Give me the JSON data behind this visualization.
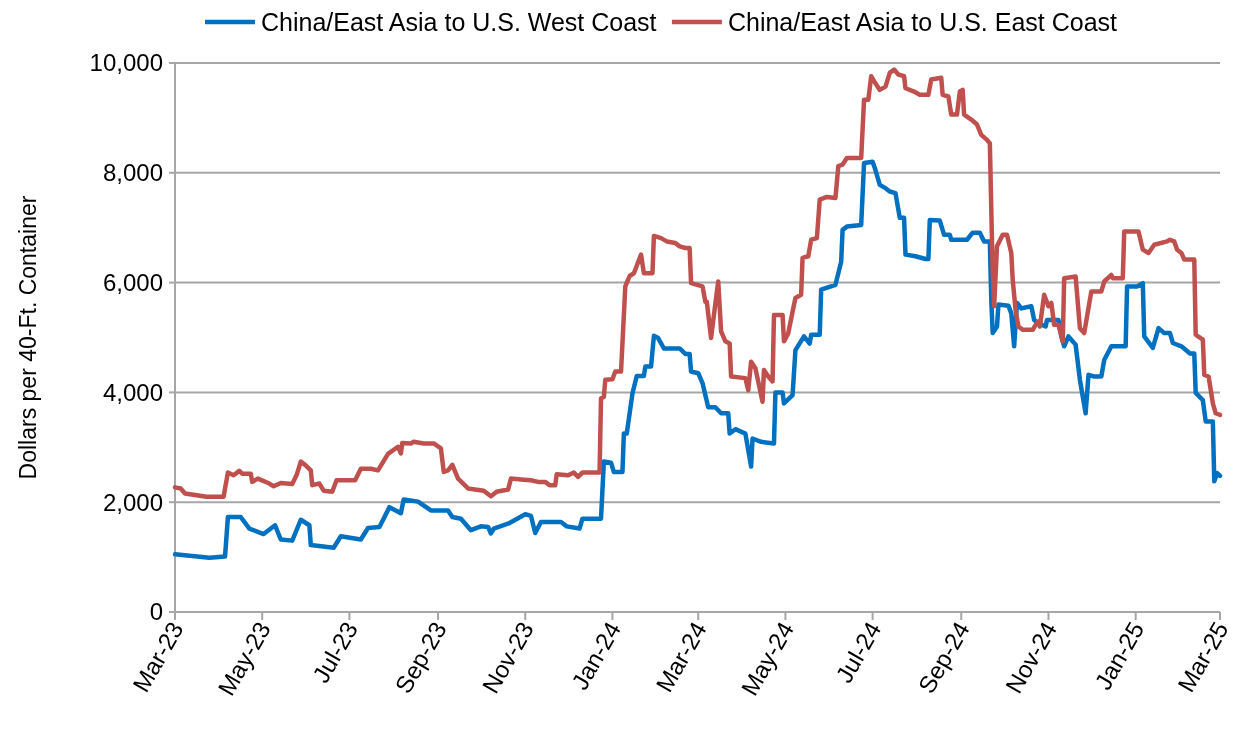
{
  "chart_data": {
    "type": "line",
    "ylabel": "Dollars per 40-Ft. Container",
    "xlim": [
      "2023-03-01",
      "2025-03-01"
    ],
    "xticks": [
      {
        "value": "2023-03-01",
        "label": "Mar-23"
      },
      {
        "value": "2023-05-01",
        "label": "May-23"
      },
      {
        "value": "2023-07-01",
        "label": "Jul-23"
      },
      {
        "value": "2023-09-01",
        "label": "Sep-23"
      },
      {
        "value": "2023-11-01",
        "label": "Nov-23"
      },
      {
        "value": "2024-01-01",
        "label": "Jan-24"
      },
      {
        "value": "2024-03-01",
        "label": "Mar-24"
      },
      {
        "value": "2024-05-01",
        "label": "May-24"
      },
      {
        "value": "2024-07-01",
        "label": "Jul-24"
      },
      {
        "value": "2024-09-01",
        "label": "Sep-24"
      },
      {
        "value": "2024-11-01",
        "label": "Nov-24"
      },
      {
        "value": "2025-01-01",
        "label": "Jan-25"
      },
      {
        "value": "2025-03-01",
        "label": "Mar-25"
      }
    ],
    "ylim": [
      0,
      10000
    ],
    "yticks": [
      {
        "value": 0,
        "label": "0"
      },
      {
        "value": 2000,
        "label": "2,000"
      },
      {
        "value": 4000,
        "label": "4,000"
      },
      {
        "value": 6000,
        "label": "6,000"
      },
      {
        "value": 8000,
        "label": "8,000"
      },
      {
        "value": 10000,
        "label": "10,000"
      }
    ],
    "grid": "y",
    "legend": "top",
    "marker": "none",
    "line_style": "solid",
    "series": [
      {
        "name": "China/East Asia to U.S. West Coast",
        "color": "#0070c0",
        "x": [
          "2023-03-01",
          "2023-03-25",
          "2023-04-05",
          "2023-04-07",
          "2023-04-16",
          "2023-04-22",
          "2023-05-02",
          "2023-05-10",
          "2023-05-14",
          "2023-05-22",
          "2023-05-28",
          "2023-06-03",
          "2023-06-04",
          "2023-06-20",
          "2023-06-25",
          "2023-07-09",
          "2023-07-14",
          "2023-07-22",
          "2023-07-29",
          "2023-08-06",
          "2023-08-08",
          "2023-08-18",
          "2023-08-27",
          "2023-09-08",
          "2023-09-11",
          "2023-09-17",
          "2023-09-24",
          "2023-10-01",
          "2023-10-06",
          "2023-10-08",
          "2023-10-10",
          "2023-10-21",
          "2023-11-01",
          "2023-11-05",
          "2023-11-08",
          "2023-11-12",
          "2023-11-26",
          "2023-11-30",
          "2023-12-09",
          "2023-12-11",
          "2023-12-24",
          "2023-12-26",
          "2023-12-31",
          "2024-01-02",
          "2024-01-08",
          "2024-01-09",
          "2024-01-11",
          "2024-01-15",
          "2024-01-18",
          "2024-01-23",
          "2024-01-24",
          "2024-01-28",
          "2024-01-30",
          "2024-02-02",
          "2024-02-06",
          "2024-02-17",
          "2024-02-21",
          "2024-02-24",
          "2024-02-25",
          "2024-03-01",
          "2024-03-04",
          "2024-03-08",
          "2024-03-13",
          "2024-03-17",
          "2024-03-22",
          "2024-03-23",
          "2024-03-27",
          "2024-04-03",
          "2024-04-07",
          "2024-04-08",
          "2024-04-14",
          "2024-04-23",
          "2024-04-24",
          "2024-04-29",
          "2024-04-30",
          "2024-05-06",
          "2024-05-08",
          "2024-05-14",
          "2024-05-18",
          "2024-05-19",
          "2024-05-25",
          "2024-05-26",
          "2024-06-05",
          "2024-06-09",
          "2024-06-10",
          "2024-06-13",
          "2024-06-23",
          "2024-06-25",
          "2024-07-01",
          "2024-07-03",
          "2024-07-06",
          "2024-07-10",
          "2024-07-13",
          "2024-07-17",
          "2024-07-20",
          "2024-07-23",
          "2024-07-24",
          "2024-07-31",
          "2024-08-07",
          "2024-08-09",
          "2024-08-10",
          "2024-08-17",
          "2024-08-20",
          "2024-08-24",
          "2024-08-25",
          "2024-09-05",
          "2024-09-09",
          "2024-09-14",
          "2024-09-17",
          "2024-09-21",
          "2024-09-22",
          "2024-09-23",
          "2024-09-26",
          "2024-09-27",
          "2024-10-04",
          "2024-10-06",
          "2024-10-08",
          "2024-10-10",
          "2024-10-13",
          "2024-10-20",
          "2024-10-22",
          "2024-10-25",
          "2024-10-30",
          "2024-10-31",
          "2024-11-08",
          "2024-11-10",
          "2024-11-12",
          "2024-11-15",
          "2024-11-20",
          "2024-11-23",
          "2024-11-27",
          "2024-11-29",
          "2024-12-03",
          "2024-12-08",
          "2024-12-10",
          "2024-12-15",
          "2024-12-25",
          "2024-12-26",
          "2025-01-02",
          "2025-01-06",
          "2025-01-07",
          "2025-01-13",
          "2025-01-17",
          "2025-01-21",
          "2025-01-25",
          "2025-01-27",
          "2025-02-02",
          "2025-02-08",
          "2025-02-11",
          "2025-02-12",
          "2025-02-17",
          "2025-02-19",
          "2025-02-24",
          "2025-02-25",
          "2025-02-27",
          "2025-03-01"
        ],
        "values": [
          1050,
          990,
          1010,
          1730,
          1730,
          1520,
          1420,
          1580,
          1320,
          1300,
          1680,
          1580,
          1220,
          1170,
          1380,
          1320,
          1530,
          1550,
          1910,
          1800,
          2050,
          2010,
          1850,
          1850,
          1730,
          1700,
          1490,
          1560,
          1550,
          1430,
          1520,
          1620,
          1780,
          1750,
          1440,
          1640,
          1640,
          1560,
          1520,
          1700,
          1700,
          2740,
          2720,
          2550,
          2550,
          3250,
          3250,
          3980,
          4300,
          4300,
          4470,
          4470,
          5030,
          4990,
          4800,
          4800,
          4700,
          4700,
          4380,
          4350,
          4170,
          3730,
          3730,
          3620,
          3620,
          3250,
          3330,
          3250,
          2650,
          3160,
          3100,
          3070,
          4000,
          4000,
          3800,
          3950,
          4770,
          5020,
          4890,
          5050,
          5050,
          5870,
          5960,
          6380,
          6960,
          7020,
          7050,
          8180,
          8200,
          8050,
          7780,
          7720,
          7660,
          7630,
          7180,
          7180,
          6510,
          6480,
          6430,
          6430,
          7140,
          7130,
          6870,
          6870,
          6780,
          6780,
          6910,
          6910,
          6750,
          6750,
          5690,
          5080,
          5200,
          5600,
          5580,
          5440,
          4840,
          5630,
          5530,
          5570,
          5320,
          5260,
          5200,
          5320,
          5320,
          5020,
          4840,
          5020,
          4870,
          4230,
          3620,
          4320,
          4290,
          4290,
          4590,
          4840,
          4840,
          5930,
          5930,
          5990,
          5020,
          4810,
          5170,
          5080,
          5080,
          4900,
          4840,
          4710,
          4710,
          3990,
          3860,
          3470,
          3470,
          2380,
          2530,
          2480
        ]
      },
      {
        "name": "China/East Asia to U.S. East Coast",
        "color": "#c0504d",
        "x": [
          "2023-03-01",
          "2023-03-05",
          "2023-03-08",
          "2023-03-23",
          "2023-04-04",
          "2023-04-07",
          "2023-04-11",
          "2023-04-15",
          "2023-04-17",
          "2023-04-23",
          "2023-04-24",
          "2023-04-28",
          "2023-05-06",
          "2023-05-09",
          "2023-05-14",
          "2023-05-22",
          "2023-05-25",
          "2023-05-28",
          "2023-05-31",
          "2023-06-04",
          "2023-06-05",
          "2023-06-10",
          "2023-06-13",
          "2023-06-19",
          "2023-06-22",
          "2023-07-05",
          "2023-07-09",
          "2023-07-16",
          "2023-07-21",
          "2023-07-28",
          "2023-08-04",
          "2023-08-06",
          "2023-08-07",
          "2023-08-13",
          "2023-08-15",
          "2023-08-22",
          "2023-08-29",
          "2023-09-03",
          "2023-09-05",
          "2023-09-08",
          "2023-09-11",
          "2023-09-15",
          "2023-09-22",
          "2023-10-03",
          "2023-10-08",
          "2023-10-12",
          "2023-10-20",
          "2023-10-22",
          "2023-10-31",
          "2023-11-05",
          "2023-11-10",
          "2023-11-15",
          "2023-11-18",
          "2023-11-22",
          "2023-11-23",
          "2023-12-01",
          "2023-12-05",
          "2023-12-08",
          "2023-12-11",
          "2023-12-23",
          "2023-12-24",
          "2023-12-26",
          "2023-12-27",
          "2024-01-01",
          "2024-01-03",
          "2024-01-07",
          "2024-01-09",
          "2024-01-10",
          "2024-01-13",
          "2024-01-16",
          "2024-01-21",
          "2024-01-23",
          "2024-01-29",
          "2024-01-30",
          "2024-02-04",
          "2024-02-08",
          "2024-02-14",
          "2024-02-17",
          "2024-02-21",
          "2024-02-24",
          "2024-02-25",
          "2024-03-04",
          "2024-03-06",
          "2024-03-07",
          "2024-03-10",
          "2024-03-13",
          "2024-03-15",
          "2024-03-17",
          "2024-03-20",
          "2024-03-23",
          "2024-03-24",
          "2024-04-03",
          "2024-04-05",
          "2024-04-07",
          "2024-04-10",
          "2024-04-15",
          "2024-04-16",
          "2024-04-19",
          "2024-04-22",
          "2024-04-23",
          "2024-04-29",
          "2024-04-30",
          "2024-05-03",
          "2024-05-06",
          "2024-05-08",
          "2024-05-12",
          "2024-05-13",
          "2024-05-17",
          "2024-05-19",
          "2024-05-23",
          "2024-05-25",
          "2024-05-30",
          "2024-06-05",
          "2024-06-07",
          "2024-06-10",
          "2024-06-13",
          "2024-06-23",
          "2024-06-25",
          "2024-06-28",
          "2024-06-30",
          "2024-07-02",
          "2024-07-06",
          "2024-07-10",
          "2024-07-13",
          "2024-07-16",
          "2024-07-19",
          "2024-07-23",
          "2024-07-24",
          "2024-07-30",
          "2024-08-03",
          "2024-08-09",
          "2024-08-11",
          "2024-08-18",
          "2024-08-19",
          "2024-08-23",
          "2024-08-25",
          "2024-08-29",
          "2024-08-31",
          "2024-09-02",
          "2024-09-03",
          "2024-09-08",
          "2024-09-12",
          "2024-09-15",
          "2024-09-19",
          "2024-09-21",
          "2024-09-23",
          "2024-09-24",
          "2024-09-26",
          "2024-09-30",
          "2024-10-03",
          "2024-10-06",
          "2024-10-07",
          "2024-10-09",
          "2024-10-11",
          "2024-10-14",
          "2024-10-21",
          "2024-10-23",
          "2024-10-25",
          "2024-10-26",
          "2024-10-29",
          "2024-11-01",
          "2024-11-03",
          "2024-11-05",
          "2024-11-08",
          "2024-11-11",
          "2024-11-12",
          "2024-11-20",
          "2024-11-23",
          "2024-11-26",
          "2024-12-01",
          "2024-12-08",
          "2024-12-10",
          "2024-12-15",
          "2024-12-16",
          "2024-12-23",
          "2024-12-24",
          "2025-01-03",
          "2025-01-06",
          "2025-01-10",
          "2025-01-14",
          "2025-01-23",
          "2025-01-25",
          "2025-01-28",
          "2025-01-30",
          "2025-02-02",
          "2025-02-04",
          "2025-02-11",
          "2025-02-12",
          "2025-02-17",
          "2025-02-18",
          "2025-02-21",
          "2025-02-24",
          "2025-02-26",
          "2025-03-01"
        ],
        "values": [
          2270,
          2250,
          2160,
          2100,
          2100,
          2540,
          2490,
          2570,
          2520,
          2520,
          2370,
          2430,
          2340,
          2290,
          2350,
          2330,
          2490,
          2740,
          2680,
          2580,
          2310,
          2340,
          2210,
          2190,
          2400,
          2400,
          2610,
          2610,
          2580,
          2880,
          3010,
          2890,
          3080,
          3070,
          3100,
          3070,
          3070,
          2980,
          2550,
          2580,
          2680,
          2430,
          2250,
          2210,
          2110,
          2190,
          2230,
          2430,
          2410,
          2400,
          2370,
          2370,
          2310,
          2310,
          2510,
          2490,
          2540,
          2460,
          2540,
          2540,
          3890,
          3920,
          4230,
          4240,
          4380,
          4380,
          5410,
          5930,
          6120,
          6170,
          6510,
          6170,
          6170,
          6850,
          6810,
          6750,
          6720,
          6660,
          6630,
          6630,
          5990,
          5930,
          5650,
          5650,
          4990,
          5620,
          6020,
          5110,
          4930,
          4890,
          4290,
          4260,
          4040,
          4560,
          4440,
          3830,
          4410,
          4290,
          4200,
          5410,
          5410,
          4930,
          5080,
          5470,
          5720,
          5780,
          6450,
          6480,
          6780,
          6810,
          7510,
          7560,
          7540,
          8120,
          8150,
          8270,
          8270,
          9330,
          9330,
          9760,
          9670,
          9510,
          9570,
          9820,
          9880,
          9790,
          9760,
          9540,
          9480,
          9420,
          9420,
          9700,
          9730,
          9420,
          9390,
          9060,
          9060,
          9480,
          9510,
          9060,
          8970,
          8880,
          8690,
          8600,
          8540,
          6170,
          5570,
          6660,
          6870,
          6870,
          6540,
          6050,
          5500,
          5200,
          5140,
          5140,
          5230,
          5290,
          5200,
          5780,
          5570,
          5630,
          5230,
          5230,
          4930,
          6080,
          6110,
          5170,
          5080,
          5840,
          5840,
          6020,
          6140,
          6080,
          6080,
          6930,
          6930,
          6600,
          6540,
          6690,
          6750,
          6780,
          6750,
          6600,
          6540,
          6420,
          6420,
          5050,
          4960,
          4320,
          4290,
          3800,
          3620,
          3590
        ]
      }
    ]
  }
}
